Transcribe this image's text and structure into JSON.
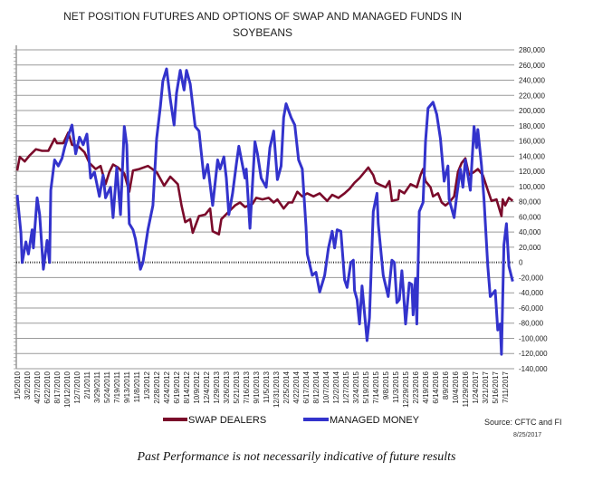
{
  "chart_data": {
    "type": "line",
    "title_lines": [
      "NET POSITION FUTURES AND OPTIONS OF SWAP AND MANAGED FUNDS IN",
      "SOYBEANS"
    ],
    "x_unit": "weeks since 1/5/2010",
    "x_tick_labels": [
      "1/5/2010",
      "3/2/2010",
      "4/27/2010",
      "6/22/2010",
      "8/17/2010",
      "10/12/2010",
      "12/7/2010",
      "2/1/2011",
      "3/29/2011",
      "5/24/2011",
      "7/19/2011",
      "9/13/2011",
      "11/8/2011",
      "1/3/2012",
      "2/28/2012",
      "4/24/2012",
      "6/19/2012",
      "8/14/2012",
      "10/9/2012",
      "12/4/2012",
      "1/29/2013",
      "3/26/2013",
      "5/21/2013",
      "7/16/2013",
      "9/10/2013",
      "11/5/2013",
      "12/31/2013",
      "2/25/2014",
      "4/22/2014",
      "6/17/2014",
      "8/12/2014",
      "10/7/2014",
      "12/2/2014",
      "1/27/2015",
      "3/24/2015",
      "5/19/2015",
      "7/14/2015",
      "9/8/2015",
      "11/3/2015",
      "12/29/2015",
      "2/23/2016",
      "4/19/2016",
      "6/14/2016",
      "8/9/2016",
      "10/4/2016",
      "11/29/2016",
      "1/24/2017",
      "3/21/2017",
      "5/16/2017",
      "7/11/2017"
    ],
    "x_tick_step_weeks": 8,
    "y_ticks": [
      280000,
      260000,
      240000,
      220000,
      200000,
      180000,
      160000,
      140000,
      120000,
      100000,
      80000,
      60000,
      40000,
      20000,
      0,
      -20000,
      -40000,
      -60000,
      -80000,
      -100000,
      -120000,
      -140000
    ],
    "y_tick_labels": [
      "280,000",
      "260,000",
      "240,000",
      "220,000",
      "200,000",
      "180,000",
      "160,000",
      "140,000",
      "120,000",
      "100,000",
      "80,000",
      "60,000",
      "40,000",
      "20,000",
      "0",
      "-20,000",
      "-40,000",
      "-60,000",
      "-80,000",
      "-100,000",
      "-120,000",
      "-140,000"
    ],
    "ylim": [
      -140000,
      280000
    ],
    "xlim": [
      0,
      400
    ],
    "grid": true,
    "legend_position": "bottom",
    "series": [
      {
        "name": "SWAP DEALERS",
        "color": "#7a0a2a",
        "points": [
          [
            0,
            121
          ],
          [
            2,
            139
          ],
          [
            6,
            133
          ],
          [
            10,
            141
          ],
          [
            15,
            149
          ],
          [
            20,
            147
          ],
          [
            25,
            147
          ],
          [
            30,
            163
          ],
          [
            32,
            157
          ],
          [
            37,
            157
          ],
          [
            41,
            171
          ],
          [
            44,
            155
          ],
          [
            49,
            153
          ],
          [
            54,
            145
          ],
          [
            58,
            131
          ],
          [
            63,
            123
          ],
          [
            67,
            127
          ],
          [
            71,
            103
          ],
          [
            74,
            119
          ],
          [
            77,
            129
          ],
          [
            81,
            125
          ],
          [
            86,
            117
          ],
          [
            90,
            93
          ],
          [
            93,
            121
          ],
          [
            98,
            123
          ],
          [
            105,
            127
          ],
          [
            112,
            119
          ],
          [
            118,
            101
          ],
          [
            123,
            113
          ],
          [
            129,
            103
          ],
          [
            132,
            75
          ],
          [
            135,
            53
          ],
          [
            139,
            57
          ],
          [
            141,
            39
          ],
          [
            146,
            61
          ],
          [
            151,
            63
          ],
          [
            155,
            71
          ],
          [
            157,
            41
          ],
          [
            162,
            37
          ],
          [
            164,
            57
          ],
          [
            170,
            67
          ],
          [
            175,
            75
          ],
          [
            179,
            79
          ],
          [
            183,
            73
          ],
          [
            189,
            77
          ],
          [
            192,
            85
          ],
          [
            197,
            83
          ],
          [
            202,
            85
          ],
          [
            206,
            79
          ],
          [
            209,
            83
          ],
          [
            214,
            71
          ],
          [
            218,
            79
          ],
          [
            221,
            79
          ],
          [
            225,
            93
          ],
          [
            229,
            87
          ],
          [
            233,
            91
          ],
          [
            238,
            87
          ],
          [
            243,
            91
          ],
          [
            249,
            81
          ],
          [
            253,
            89
          ],
          [
            258,
            85
          ],
          [
            263,
            91
          ],
          [
            267,
            97
          ],
          [
            271,
            105
          ],
          [
            275,
            111
          ],
          [
            278,
            117
          ],
          [
            282,
            125
          ],
          [
            286,
            115
          ],
          [
            288,
            105
          ],
          [
            293,
            101
          ],
          [
            296,
            99
          ],
          [
            299,
            107
          ],
          [
            301,
            81
          ],
          [
            306,
            83
          ],
          [
            307,
            95
          ],
          [
            311,
            91
          ],
          [
            316,
            103
          ],
          [
            321,
            99
          ],
          [
            324,
            115
          ],
          [
            326,
            123
          ],
          [
            328,
            107
          ],
          [
            332,
            99
          ],
          [
            334,
            87
          ],
          [
            338,
            91
          ],
          [
            341,
            79
          ],
          [
            344,
            75
          ],
          [
            347,
            79
          ],
          [
            351,
            87
          ],
          [
            354,
            119
          ],
          [
            357,
            131
          ],
          [
            360,
            137
          ],
          [
            363,
            115
          ],
          [
            367,
            119
          ],
          [
            370,
            123
          ],
          [
            374,
            115
          ],
          [
            378,
            95
          ],
          [
            381,
            81
          ],
          [
            385,
            83
          ],
          [
            389,
            61
          ],
          [
            390,
            83
          ],
          [
            392,
            75
          ],
          [
            395,
            85
          ],
          [
            398,
            81
          ]
        ]
      },
      {
        "name": "MANAGED MONEY",
        "color": "#3333cc",
        "points": [
          [
            0,
            89
          ],
          [
            3,
            39
          ],
          [
            4,
            0
          ],
          [
            7,
            27
          ],
          [
            9,
            11
          ],
          [
            12,
            43
          ],
          [
            13,
            19
          ],
          [
            16,
            85
          ],
          [
            18,
            63
          ],
          [
            21,
            -9
          ],
          [
            24,
            29
          ],
          [
            26,
            0
          ],
          [
            27,
            95
          ],
          [
            30,
            135
          ],
          [
            33,
            127
          ],
          [
            36,
            137
          ],
          [
            38,
            151
          ],
          [
            41,
            167
          ],
          [
            44,
            181
          ],
          [
            47,
            143
          ],
          [
            50,
            165
          ],
          [
            53,
            155
          ],
          [
            56,
            169
          ],
          [
            59,
            111
          ],
          [
            62,
            119
          ],
          [
            66,
            87
          ],
          [
            69,
            115
          ],
          [
            71,
            85
          ],
          [
            75,
            99
          ],
          [
            77,
            59
          ],
          [
            80,
            125
          ],
          [
            83,
            63
          ],
          [
            86,
            179
          ],
          [
            88,
            155
          ],
          [
            90,
            51
          ],
          [
            93,
            43
          ],
          [
            95,
            31
          ],
          [
            99,
            -9
          ],
          [
            101,
            0
          ],
          [
            105,
            43
          ],
          [
            109,
            75
          ],
          [
            112,
            163
          ],
          [
            115,
            205
          ],
          [
            117,
            239
          ],
          [
            120,
            255
          ],
          [
            123,
            215
          ],
          [
            126,
            181
          ],
          [
            128,
            223
          ],
          [
            131,
            253
          ],
          [
            134,
            227
          ],
          [
            136,
            253
          ],
          [
            139,
            235
          ],
          [
            143,
            179
          ],
          [
            146,
            173
          ],
          [
            150,
            111
          ],
          [
            153,
            129
          ],
          [
            157,
            75
          ],
          [
            161,
            135
          ],
          [
            163,
            123
          ],
          [
            166,
            139
          ],
          [
            168,
            111
          ],
          [
            170,
            63
          ],
          [
            173,
            91
          ],
          [
            176,
            129
          ],
          [
            178,
            153
          ],
          [
            183,
            111
          ],
          [
            184,
            123
          ],
          [
            187,
            45
          ],
          [
            191,
            159
          ],
          [
            193,
            143
          ],
          [
            196,
            111
          ],
          [
            200,
            99
          ],
          [
            203,
            151
          ],
          [
            206,
            173
          ],
          [
            209,
            109
          ],
          [
            212,
            127
          ],
          [
            214,
            191
          ],
          [
            216,
            209
          ],
          [
            220,
            191
          ],
          [
            223,
            181
          ],
          [
            226,
            135
          ],
          [
            229,
            123
          ],
          [
            232,
            47
          ],
          [
            233,
            11
          ],
          [
            237,
            -17
          ],
          [
            240,
            -13
          ],
          [
            243,
            -39
          ],
          [
            247,
            -17
          ],
          [
            250,
            19
          ],
          [
            253,
            41
          ],
          [
            255,
            19
          ],
          [
            257,
            43
          ],
          [
            260,
            41
          ],
          [
            263,
            -23
          ],
          [
            265,
            -33
          ],
          [
            268,
            0
          ],
          [
            270,
            3
          ],
          [
            271,
            -37
          ],
          [
            273,
            -49
          ],
          [
            275,
            -81
          ],
          [
            277,
            -31
          ],
          [
            281,
            -103
          ],
          [
            283,
            -73
          ],
          [
            286,
            67
          ],
          [
            289,
            91
          ],
          [
            290,
            51
          ],
          [
            294,
            -17
          ],
          [
            298,
            -45
          ],
          [
            301,
            3
          ],
          [
            303,
            0
          ],
          [
            305,
            -53
          ],
          [
            307,
            -49
          ],
          [
            309,
            -11
          ],
          [
            310,
            -33
          ],
          [
            312,
            -81
          ],
          [
            315,
            -27
          ],
          [
            317,
            -29
          ],
          [
            318,
            -69
          ],
          [
            320,
            -21
          ],
          [
            321,
            -81
          ],
          [
            323,
            67
          ],
          [
            326,
            79
          ],
          [
            328,
            159
          ],
          [
            330,
            203
          ],
          [
            334,
            211
          ],
          [
            337,
            195
          ],
          [
            340,
            163
          ],
          [
            343,
            107
          ],
          [
            344,
            115
          ],
          [
            346,
            127
          ],
          [
            347,
            83
          ],
          [
            351,
            59
          ],
          [
            353,
            87
          ],
          [
            356,
            123
          ],
          [
            358,
            99
          ],
          [
            360,
            135
          ],
          [
            364,
            95
          ],
          [
            367,
            179
          ],
          [
            369,
            151
          ],
          [
            370,
            175
          ],
          [
            373,
            127
          ],
          [
            375,
            83
          ],
          [
            378,
            -5
          ],
          [
            380,
            -45
          ],
          [
            384,
            -37
          ],
          [
            386,
            -89
          ],
          [
            388,
            -81
          ],
          [
            389,
            -121
          ],
          [
            391,
            23
          ],
          [
            393,
            51
          ],
          [
            395,
            -5
          ],
          [
            398,
            -25
          ]
        ]
      }
    ],
    "value_unit": "thousands of contracts (points); axis shows contracts",
    "source": "Source: CFTC and FI",
    "date": "8/25/2017"
  },
  "footer": "Past Performance is not necessarily indicative of future results"
}
